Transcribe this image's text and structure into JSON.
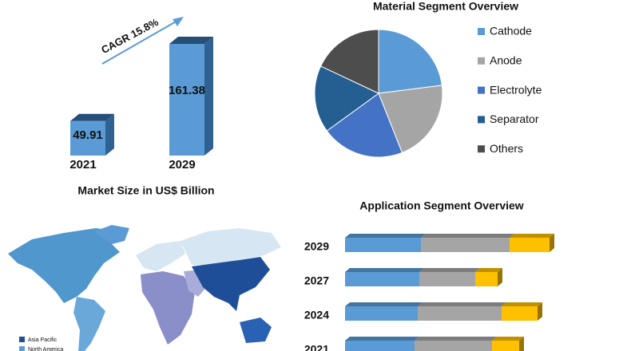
{
  "chart_data": [
    {
      "type": "bar",
      "title": "Market Size in US$ Billion",
      "annotation": "CAGR 15.8%",
      "categories": [
        "2021",
        "2029"
      ],
      "values": [
        49.91,
        161.38
      ],
      "color": "#5b9bd5",
      "side_color": "#2f6293"
    },
    {
      "type": "pie",
      "title": "Material Segment Overview",
      "categories": [
        "Cathode",
        "Anode",
        "Electrolyte",
        "Separator",
        "Others"
      ],
      "values": [
        23,
        21,
        21,
        17,
        18
      ],
      "colors": [
        "#5b9bd5",
        "#a5a5a5",
        "#4472c4",
        "#255e91",
        "#4d4d4d"
      ]
    },
    {
      "type": "bar",
      "orientation": "horizontal",
      "stacked": true,
      "title": "Application Segment Overview",
      "categories": [
        "2029",
        "2027",
        "2024",
        "2021"
      ],
      "series": [
        {
          "color": "#5b9bd5",
          "values": [
            95,
            93,
            91,
            87
          ]
        },
        {
          "color": "#a5a5a5",
          "values": [
            111,
            70,
            105,
            97
          ]
        },
        {
          "color": "#ffc000",
          "values": [
            50,
            28,
            45,
            34
          ]
        }
      ]
    },
    {
      "type": "map",
      "legend": [
        {
          "name": "Asia Pacific",
          "color": "#1f4e99"
        },
        {
          "name": "North America",
          "color": "#5b9bd5"
        }
      ]
    }
  ]
}
